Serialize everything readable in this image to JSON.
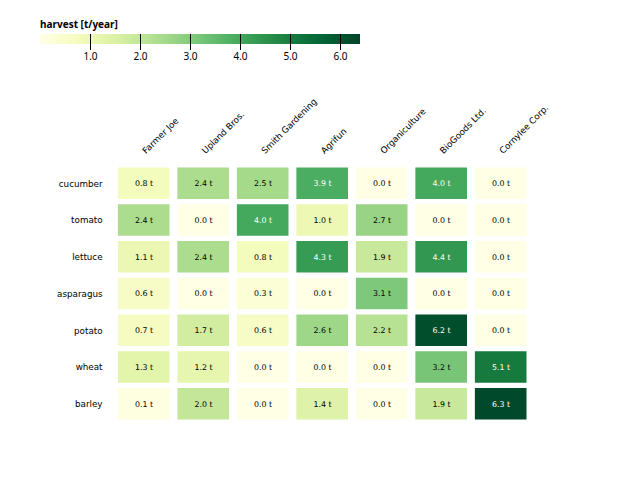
{
  "chart_data": {
    "type": "heatmap",
    "rows": [
      "cucumber",
      "tomato",
      "lettuce",
      "asparagus",
      "potato",
      "wheat",
      "barley"
    ],
    "cols": [
      "Farmer Joe",
      "Upland Bros.",
      "Smith Gardening",
      "Agrifun",
      "Organiculture",
      "BioGoods Ltd.",
      "Cornylee Corp."
    ],
    "values": [
      [
        0.8,
        2.4,
        2.5,
        3.9,
        0.0,
        4.0,
        0.0
      ],
      [
        2.4,
        0.0,
        4.0,
        1.0,
        2.7,
        0.0,
        0.0
      ],
      [
        1.1,
        2.4,
        0.8,
        4.3,
        1.9,
        4.4,
        0.0
      ],
      [
        0.6,
        0.0,
        0.3,
        0.0,
        3.1,
        0.0,
        0.0
      ],
      [
        0.7,
        1.7,
        0.6,
        2.6,
        2.2,
        6.2,
        0.0
      ],
      [
        1.3,
        1.2,
        0.0,
        0.0,
        0.0,
        3.2,
        5.1
      ],
      [
        0.1,
        2.0,
        0.0,
        1.4,
        0.0,
        1.9,
        6.3
      ]
    ],
    "value_labels": [
      [
        "0.8 t",
        "2.4 t",
        "2.5 t",
        "3.9 t",
        "0.0 t",
        "4.0 t",
        "0.0 t"
      ],
      [
        "2.4 t",
        "0.0 t",
        "4.0 t",
        "1.0 t",
        "2.7 t",
        "0.0 t",
        "0.0 t"
      ],
      [
        "1.1 t",
        "2.4 t",
        "0.8 t",
        "4.3 t",
        "1.9 t",
        "4.4 t",
        "0.0 t"
      ],
      [
        "0.6 t",
        "0.0 t",
        "0.3 t",
        "0.0 t",
        "3.1 t",
        "0.0 t",
        "0.0 t"
      ],
      [
        "0.7 t",
        "1.7 t",
        "0.6 t",
        "2.6 t",
        "2.2 t",
        "6.2 t",
        "0.0 t"
      ],
      [
        "1.3 t",
        "1.2 t",
        "0.0 t",
        "0.0 t",
        "0.0 t",
        "3.2 t",
        "5.1 t"
      ],
      [
        "0.1 t",
        "2.0 t",
        "0.0 t",
        "1.4 t",
        "0.0 t",
        "1.9 t",
        "6.3 t"
      ]
    ],
    "color": "YlGn",
    "colorbar_label": "harvest [t/year]",
    "colorbar_range": [
      0,
      6.4
    ],
    "colorbar_ticks": [
      1,
      2,
      3,
      4,
      5,
      6
    ]
  }
}
